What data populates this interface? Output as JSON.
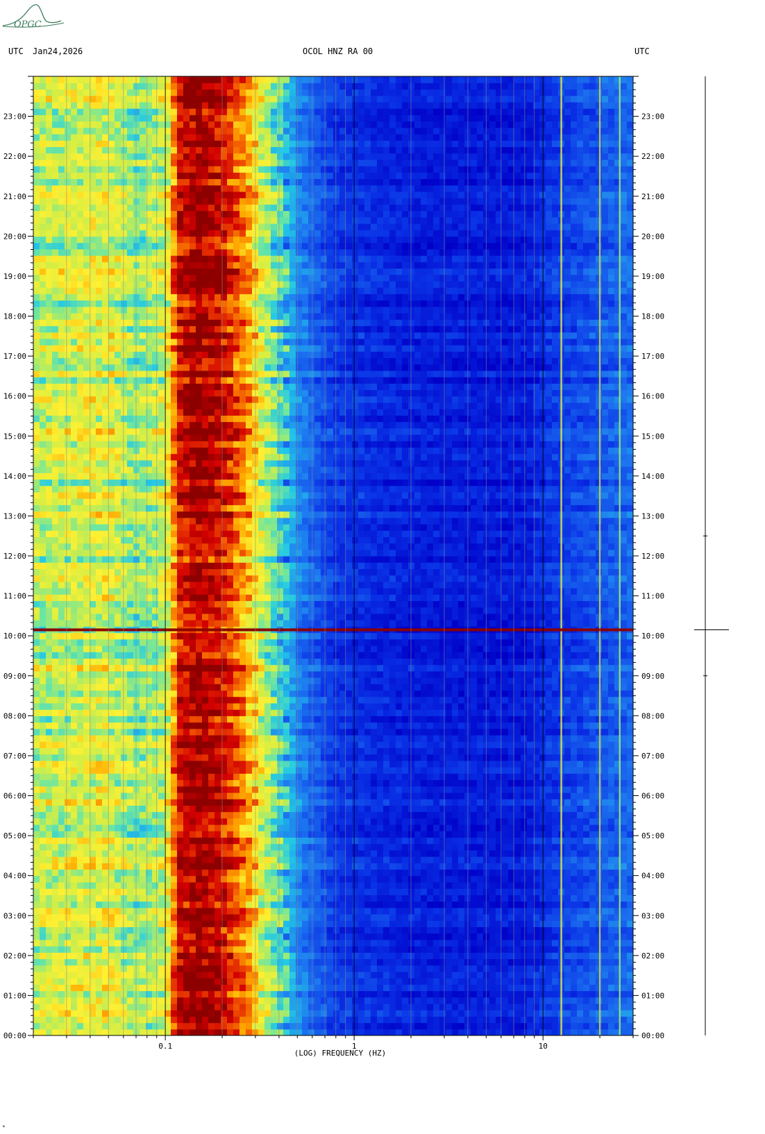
{
  "logo": {
    "text": "OPGC",
    "color": "#3a7a5a"
  },
  "header": {
    "left_utc": "UTC",
    "date": "Jan24,2026",
    "station": "OCOL HNZ RA 00",
    "right_utc": "UTC"
  },
  "chart_data": {
    "type": "heatmap",
    "title": "OCOL HNZ RA 00",
    "xlabel": "(LOG) FREQUENCY (HZ)",
    "x_scale": "log",
    "xlim": [
      0.02,
      30
    ],
    "x_ticks": [
      {
        "value": 0.1,
        "label": "0.1"
      },
      {
        "value": 1,
        "label": "1"
      },
      {
        "value": 10,
        "label": "10"
      }
    ],
    "y_ticks": [
      "00:00",
      "01:00",
      "02:00",
      "03:00",
      "04:00",
      "05:00",
      "06:00",
      "07:00",
      "08:00",
      "09:00",
      "10:00",
      "11:00",
      "12:00",
      "13:00",
      "14:00",
      "15:00",
      "16:00",
      "17:00",
      "18:00",
      "19:00",
      "20:00",
      "21:00",
      "22:00",
      "23:00"
    ],
    "ylim_hours": [
      0,
      24
    ],
    "colormap": [
      "#0000c8",
      "#0a32e6",
      "#1e78f0",
      "#22c8e6",
      "#6ee6a0",
      "#d2ee46",
      "#fff032",
      "#ffaa00",
      "#f05000",
      "#d20000",
      "#8c0000"
    ],
    "spectral_profile": [
      {
        "freq": 0.02,
        "level": 0.48
      },
      {
        "freq": 0.05,
        "level": 0.54
      },
      {
        "freq": 0.07,
        "level": 0.42
      },
      {
        "freq": 0.1,
        "level": 0.5
      },
      {
        "freq": 0.12,
        "level": 0.86
      },
      {
        "freq": 0.15,
        "level": 0.94
      },
      {
        "freq": 0.2,
        "level": 0.86
      },
      {
        "freq": 0.26,
        "level": 0.7
      },
      {
        "freq": 0.35,
        "level": 0.45
      },
      {
        "freq": 0.5,
        "level": 0.22
      },
      {
        "freq": 0.8,
        "level": 0.1
      },
      {
        "freq": 2,
        "level": 0.06
      },
      {
        "freq": 8,
        "level": 0.05
      },
      {
        "freq": 11,
        "level": 0.1
      },
      {
        "freq": 20,
        "level": 0.15
      },
      {
        "freq": 30,
        "level": 0.18
      }
    ],
    "narrowband_lines": [
      {
        "freq": 12.5,
        "level": 0.55
      },
      {
        "freq": 20,
        "level": 0.5
      },
      {
        "freq": 25.5,
        "level": 0.45
      }
    ],
    "events": [
      {
        "time_hours": 10.15,
        "label": "broadband event"
      }
    ],
    "event_color": "#8c0000"
  }
}
